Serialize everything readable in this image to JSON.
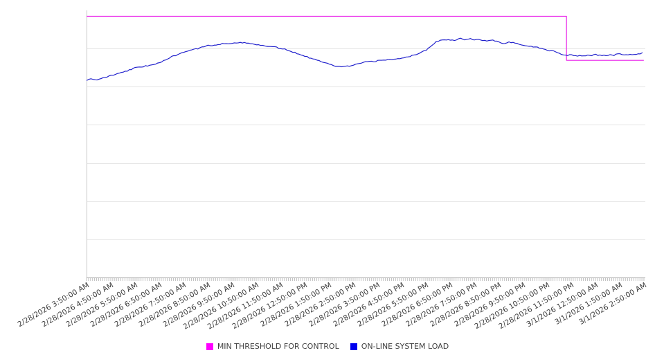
{
  "page": {
    "background": "#ffffff"
  },
  "legend": {
    "position": "bottom-center",
    "entries": [
      {
        "label": "MIN THRESHOLD FOR CONTROL",
        "color": "#FF00FF"
      },
      {
        "label": "ON-LINE SYSTEM LOAD",
        "color": "#0000EE"
      }
    ]
  },
  "chart_data": {
    "type": "line",
    "title": "",
    "x_axis": {
      "unit": "time",
      "t_unit": "hours since 2/28/2026 3:50:00 AM",
      "tick_interval": "1 hour",
      "minor_tick_interval_minutes": 5,
      "label_rotation_deg": -30,
      "range_hours": [
        0,
        23
      ],
      "tick_labels": [
        "2/28/2026 3:50:00 AM",
        "2/28/2026 4:50:00 AM",
        "2/28/2026 5:50:00 AM",
        "2/28/2026 6:50:00 AM",
        "2/28/2026 7:50:00 AM",
        "2/28/2026 8:50:00 AM",
        "2/28/2026 9:50:00 AM",
        "2/28/2026 10:50:00 AM",
        "2/28/2026 11:50:00 AM",
        "2/28/2026 12:50:00 PM",
        "2/28/2026 1:50:00 PM",
        "2/28/2026 2:50:00 PM",
        "2/28/2026 3:50:00 PM",
        "2/28/2026 4:50:00 PM",
        "2/28/2026 5:50:00 PM",
        "2/28/2026 6:50:00 PM",
        "2/28/2026 7:50:00 PM",
        "2/28/2026 8:50:00 PM",
        "2/28/2026 9:50:00 PM",
        "2/28/2026 10:50:00 PM",
        "2/28/2026 11:50:00 PM",
        "3/1/2026 12:50:00 AM",
        "3/1/2026 1:50:00 AM",
        "3/1/2026 2:50:00 AM"
      ]
    },
    "y_axis": {
      "labels_visible": false,
      "range": [
        0,
        100
      ],
      "gridline_divisions": 7,
      "gridlines_on": true
    },
    "legend_position": "bottom-center",
    "series": [
      {
        "name": "MIN THRESHOLD FOR CONTROL",
        "color": "#E81CE8",
        "shape": "step",
        "t_hours": [
          0,
          19.79,
          19.79,
          22.97
        ],
        "values": [
          97.8,
          97.8,
          81.3,
          81.3
        ]
      },
      {
        "name": "ON-LINE SYSTEM LOAD",
        "color": "#1B1BCB",
        "shape": "noisy-line",
        "t_hours": [
          0,
          0.25,
          0.4,
          0.6,
          0.75,
          1,
          1.25,
          1.5,
          1.75,
          2,
          2.25,
          2.5,
          2.75,
          3,
          3.25,
          3.5,
          3.75,
          4,
          4.25,
          4.5,
          4.75,
          5,
          5.25,
          5.5,
          5.75,
          6,
          6.3,
          6.5,
          6.75,
          7,
          7.25,
          7.5,
          7.75,
          8,
          8.25,
          8.5,
          8.75,
          9,
          9.25,
          9.5,
          9.75,
          10,
          10.15,
          10.35,
          10.5,
          10.65,
          10.8,
          11,
          11.25,
          11.5,
          11.75,
          12,
          12.25,
          12.5,
          12.75,
          13,
          13.25,
          13.5,
          13.75,
          14,
          14.2,
          14.4,
          14.6,
          14.8,
          15,
          15.2,
          15.4,
          15.6,
          15.8,
          16,
          16.15,
          16.3,
          16.5,
          16.7,
          16.85,
          17,
          17.2,
          17.35,
          17.5,
          17.75,
          18,
          18.25,
          18.5,
          18.75,
          19,
          19.25,
          19.5,
          19.65,
          19.79,
          20,
          20.25,
          20.5,
          20.75,
          21,
          21.25,
          21.5,
          21.75,
          22,
          22.25,
          22.5,
          22.75,
          22.97
        ],
        "values": [
          73.8,
          74.4,
          73.9,
          74.5,
          74.9,
          75.6,
          76.2,
          76.9,
          77.7,
          78.5,
          78.8,
          79.3,
          79.8,
          80.6,
          81.3,
          82.6,
          83.4,
          84.5,
          85.0,
          85.5,
          86.2,
          86.8,
          87.0,
          87.4,
          87.6,
          87.8,
          88.1,
          87.8,
          87.6,
          87.3,
          86.9,
          86.5,
          86.2,
          85.8,
          85.2,
          84.5,
          83.7,
          82.9,
          82.1,
          81.3,
          80.7,
          80.1,
          79.5,
          79.0,
          78.9,
          79.3,
          79.0,
          79.5,
          80.1,
          80.6,
          80.8,
          81.1,
          81.4,
          81.6,
          81.9,
          82.1,
          82.6,
          83.2,
          84.2,
          85.2,
          86.5,
          88.3,
          88.9,
          88.9,
          89.0,
          88.9,
          89.6,
          89.1,
          89.4,
          88.9,
          89.4,
          88.6,
          88.6,
          89.1,
          88.3,
          88.3,
          87.6,
          88.1,
          88.1,
          87.6,
          87.0,
          86.6,
          86.3,
          85.8,
          85.2,
          84.7,
          83.9,
          83.5,
          83.2,
          83.4,
          83.0,
          83.2,
          83.0,
          83.4,
          83.1,
          83.2,
          83.3,
          83.7,
          83.3,
          83.4,
          83.6,
          84.2
        ]
      }
    ],
    "colors": {
      "gridline": "#e4e4e4",
      "axis": "#aaaaaa",
      "y_axis_line": "#c8c8c8",
      "tick_label_text": "#3c3c3c"
    }
  }
}
